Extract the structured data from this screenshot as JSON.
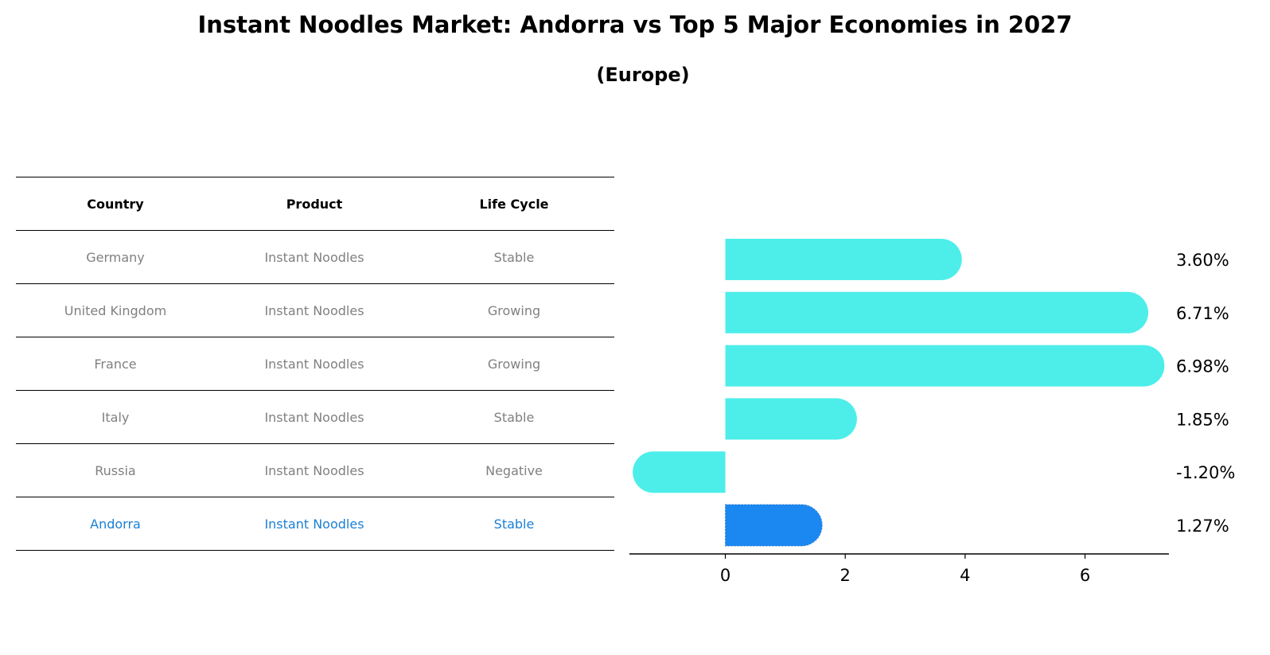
{
  "chart_data": {
    "type": "bar",
    "orientation": "horizontal",
    "title": "Instant Noodles Market: Andorra vs Top 5 Major Economies in 2027",
    "subtitle": "(Europe)",
    "table": {
      "columns": [
        "Country",
        "Product",
        "Life Cycle"
      ],
      "rows": [
        [
          "Germany",
          "Instant Noodles",
          "Stable"
        ],
        [
          "United Kingdom",
          "Instant Noodles",
          "Growing"
        ],
        [
          "France",
          "Instant Noodles",
          "Growing"
        ],
        [
          "Italy",
          "Instant Noodles",
          "Stable"
        ],
        [
          "Russia",
          "Instant Noodles",
          "Negative"
        ],
        [
          "Andorra",
          "Instant Noodles",
          "Stable"
        ]
      ],
      "highlight": "Andorra"
    },
    "categories": [
      "Germany",
      "United Kingdom",
      "France",
      "Italy",
      "Russia",
      "Andorra"
    ],
    "values": [
      3.6,
      6.71,
      6.98,
      1.85,
      -1.2,
      1.27
    ],
    "value_labels": [
      "3.60%",
      "6.71%",
      "6.98%",
      "1.85%",
      "-1.20%",
      "1.27%"
    ],
    "xlim": [
      -1.6,
      7.4
    ],
    "xticks": [
      0,
      2,
      4,
      6
    ],
    "grid": false,
    "colors": {
      "bar": "#4deeea",
      "highlight": "#1a88f0",
      "highlight_text": "#1a7fd4",
      "muted_text": "#808080"
    }
  }
}
